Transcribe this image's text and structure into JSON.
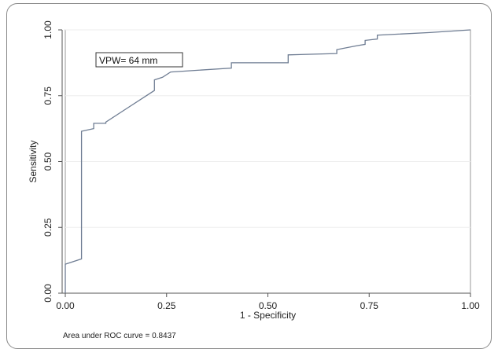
{
  "chart_data": {
    "type": "line",
    "title": "",
    "xlabel": "1 - Specificity",
    "ylabel": "Sensitivity",
    "xlim": [
      0,
      1
    ],
    "ylim": [
      0,
      1
    ],
    "x_ticks": [
      0,
      0.25,
      0.5,
      0.75,
      1
    ],
    "x_tick_labels": [
      "0.00",
      "0.25",
      "0.50",
      "0.75",
      "1.00"
    ],
    "y_ticks": [
      0,
      0.25,
      0.5,
      0.75,
      1
    ],
    "y_tick_labels": [
      "0.00",
      "0.25",
      "0.50",
      "0.75",
      "1.00"
    ],
    "grid": "horizontal",
    "annotation": "VPW= 64 mm",
    "note": "Area under ROC curve = 0.8437",
    "series": [
      {
        "color": "#6f7d93",
        "x": [
          0,
          0,
          0.04,
          0.04,
          0.07,
          0.07,
          0.1,
          0.1,
          0.15,
          0.22,
          0.22,
          0.24,
          0.26,
          0.41,
          0.41,
          0.55,
          0.55,
          0.67,
          0.67,
          0.72,
          0.74,
          0.74,
          0.77,
          0.77,
          0.9,
          1
        ],
        "y": [
          0,
          0.11,
          0.13,
          0.615,
          0.625,
          0.645,
          0.645,
          0.65,
          0.7,
          0.77,
          0.81,
          0.82,
          0.84,
          0.855,
          0.875,
          0.875,
          0.905,
          0.91,
          0.925,
          0.94,
          0.945,
          0.96,
          0.965,
          0.98,
          0.99,
          1.0
        ]
      }
    ]
  }
}
